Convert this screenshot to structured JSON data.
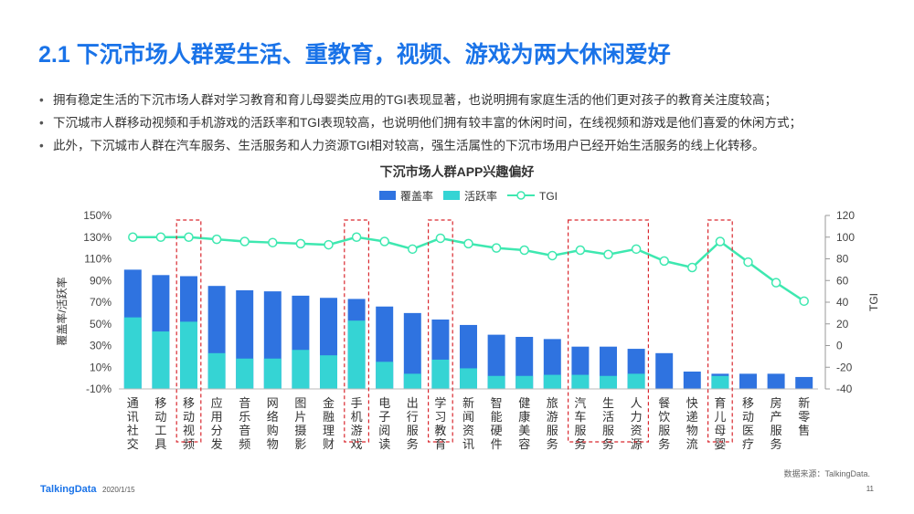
{
  "page": {
    "title": "2.1 下沉市场人群爱生活、重教育，视频、游戏为两大休闲爱好",
    "bullets": [
      "拥有稳定生活的下沉市场人群对学习教育和育儿母婴类应用的TGI表现显著，也说明拥有家庭生活的他们更对孩子的教育关注度较高；",
      "下沉城市人群移动视频和手机游戏的活跃率和TGI表现较高，也说明他们拥有较丰富的休闲时间，在线视频和游戏是他们喜爱的休闲方式；",
      "此外，下沉城市人群在汽车服务、生活服务和人力资源TGI相对较高，强生活属性的下沉市场用户已经开始生活服务的线上化转移。"
    ],
    "source": "数据来源：TalkingData.",
    "brand": "TalkingData",
    "date": "2020/1/15",
    "page_number": "11"
  },
  "colors": {
    "coverage": "#2f73e0",
    "active": "#35d4d4",
    "tgi": "#3ee8b0",
    "highlight_box": "#d9282f",
    "title": "#1a73e8"
  },
  "chart_data": {
    "type": "bar",
    "title": "下沉市场人群APP兴趣偏好",
    "legend_position": "top-center",
    "categories": [
      "通讯社交",
      "移动工具",
      "移动视频",
      "应用分发",
      "音乐音频",
      "网络购物",
      "图片摄影",
      "金融理财",
      "手机游戏",
      "电子阅读",
      "出行服务",
      "学习教育",
      "新闻资讯",
      "智能硬件",
      "健康美容",
      "旅游服务",
      "汽车服务",
      "生活服务",
      "人力资源",
      "餐饮服务",
      "快递物流",
      "育儿母婴",
      "移动医疗",
      "房产服务",
      "新零售"
    ],
    "series": [
      {
        "name": "覆盖率",
        "kind": "bar",
        "axis": "left",
        "values": [
          100,
          95,
          94,
          85,
          81,
          80,
          76,
          74,
          73,
          66,
          60,
          54,
          49,
          40,
          38,
          36,
          29,
          29,
          27,
          23,
          6,
          4,
          4,
          4,
          1
        ]
      },
      {
        "name": "活跃率",
        "kind": "bar",
        "axis": "left",
        "values": [
          56,
          43,
          52,
          23,
          18,
          18,
          26,
          21,
          53,
          15,
          4,
          17,
          9,
          2,
          2,
          3,
          3,
          2,
          4,
          0,
          0,
          2,
          0,
          0,
          0
        ]
      },
      {
        "name": "TGI",
        "kind": "line",
        "axis": "right",
        "values": [
          100,
          100,
          100,
          98,
          96,
          95,
          94,
          93,
          100,
          96,
          89,
          99,
          94,
          90,
          88,
          83,
          88,
          84,
          89,
          78,
          72,
          96,
          77,
          58,
          41
        ]
      }
    ],
    "ylabel": "覆盖率/活跃率",
    "y2label": "TGI",
    "ylim": [
      -10,
      150
    ],
    "y2lim": [
      -40,
      120
    ],
    "yticks": [
      "-10%",
      "10%",
      "30%",
      "50%",
      "70%",
      "90%",
      "110%",
      "130%",
      "150%"
    ],
    "y2ticks": [
      "-40",
      "-20",
      "0",
      "20",
      "40",
      "60",
      "80",
      "100",
      "120"
    ],
    "highlighted_categories": [
      [
        "移动视频"
      ],
      [
        "手机游戏"
      ],
      [
        "学习教育"
      ],
      [
        "汽车服务",
        "生活服务",
        "人力资源"
      ],
      [
        "育儿母婴"
      ]
    ]
  }
}
